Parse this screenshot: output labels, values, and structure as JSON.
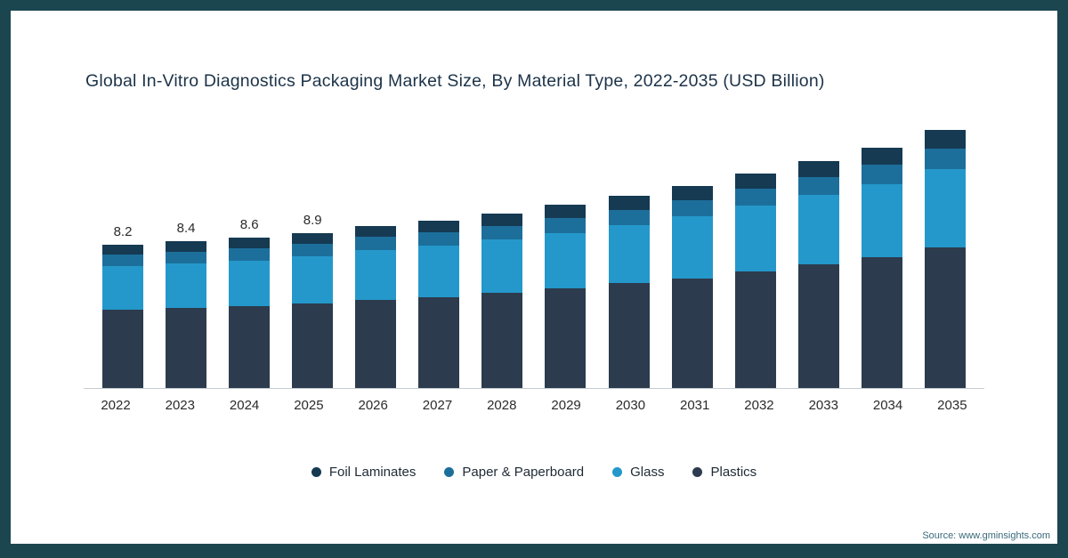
{
  "chart_data": {
    "type": "bar",
    "stacked": true,
    "title": "Global In-Vitro Diagnostics Packaging Market Size, By Material Type, 2022-2035 (USD Billion)",
    "categories": [
      "2022",
      "2023",
      "2024",
      "2025",
      "2026",
      "2027",
      "2028",
      "2029",
      "2030",
      "2031",
      "2032",
      "2033",
      "2034",
      "2035"
    ],
    "series": [
      {
        "name": "Plastics",
        "color": "#2c3b4d",
        "values": [
          4.5,
          4.6,
          4.7,
          4.85,
          5.05,
          5.2,
          5.45,
          5.7,
          6.0,
          6.3,
          6.7,
          7.1,
          7.5,
          8.05
        ]
      },
      {
        "name": "Glass",
        "color": "#2498cb",
        "values": [
          2.5,
          2.55,
          2.6,
          2.7,
          2.85,
          2.95,
          3.05,
          3.2,
          3.35,
          3.55,
          3.75,
          3.95,
          4.2,
          4.5
        ]
      },
      {
        "name": "Paper & Paperboard",
        "color": "#1d6f9b",
        "values": [
          0.65,
          0.67,
          0.69,
          0.72,
          0.75,
          0.78,
          0.8,
          0.85,
          0.88,
          0.93,
          0.99,
          1.05,
          1.12,
          1.2
        ]
      },
      {
        "name": "Foil Laminates",
        "color": "#153a52",
        "values": [
          0.55,
          0.58,
          0.61,
          0.63,
          0.65,
          0.67,
          0.7,
          0.75,
          0.77,
          0.82,
          0.86,
          0.9,
          0.98,
          1.05
        ]
      }
    ],
    "totals": [
      8.2,
      8.4,
      8.6,
      8.9,
      9.3,
      9.6,
      10.0,
      10.5,
      11.0,
      11.6,
      12.3,
      13.0,
      13.8,
      14.8
    ],
    "value_labels": [
      "8.2",
      "8.4",
      "8.6",
      "8.9",
      "",
      "",
      "",
      "",
      "",
      "",
      "",
      "",
      "",
      ""
    ],
    "legend_order": [
      "Foil Laminates",
      "Paper & Paperboard",
      "Glass",
      "Plastics"
    ],
    "ylim": [
      0,
      15.3
    ],
    "grid": false,
    "legend_position": "bottom"
  },
  "source": "Source: www.gminsights.com",
  "frame_color": "#1b4650"
}
